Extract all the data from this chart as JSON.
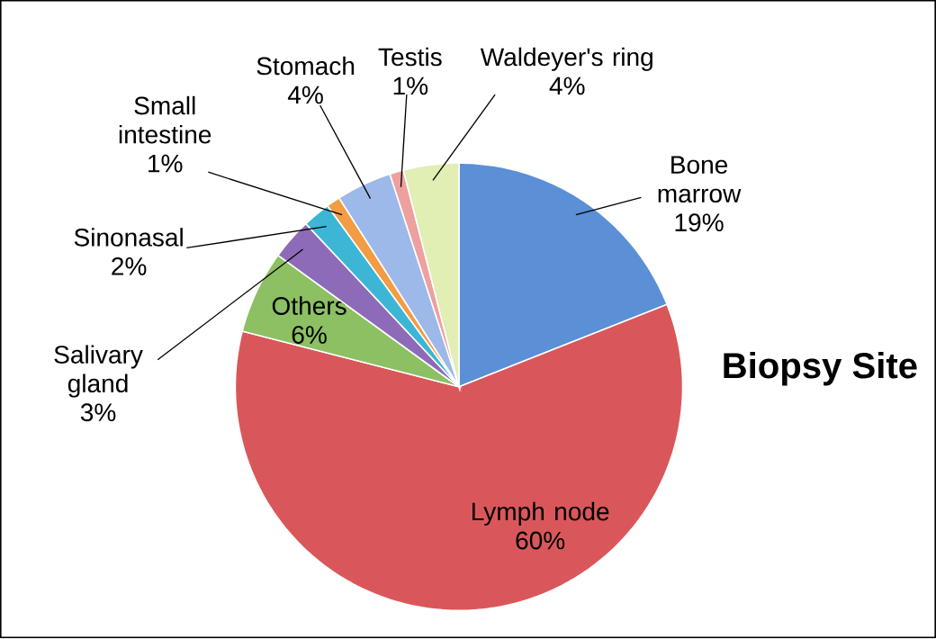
{
  "chart_data": {
    "type": "pie",
    "title": "Biopsy Site",
    "categories": [
      "Bone marrow",
      "Lymph node",
      "Others",
      "Salivary gland",
      "Sinonasal",
      "Small intestine",
      "Stomach",
      "Testis",
      "Waldeyer's ring"
    ],
    "values": [
      19,
      60,
      6,
      3,
      2,
      1,
      4,
      1,
      4
    ],
    "value_labels": [
      "19%",
      "60%",
      "6%",
      "3%",
      "2%",
      "1%",
      "4%",
      "1%",
      "4%"
    ],
    "colors": [
      "#5b8fd6",
      "#d9575a",
      "#8cc063",
      "#8e6bb8",
      "#3db6d6",
      "#f29c44",
      "#9db9ea",
      "#eea09f",
      "#e1eeb4"
    ]
  }
}
